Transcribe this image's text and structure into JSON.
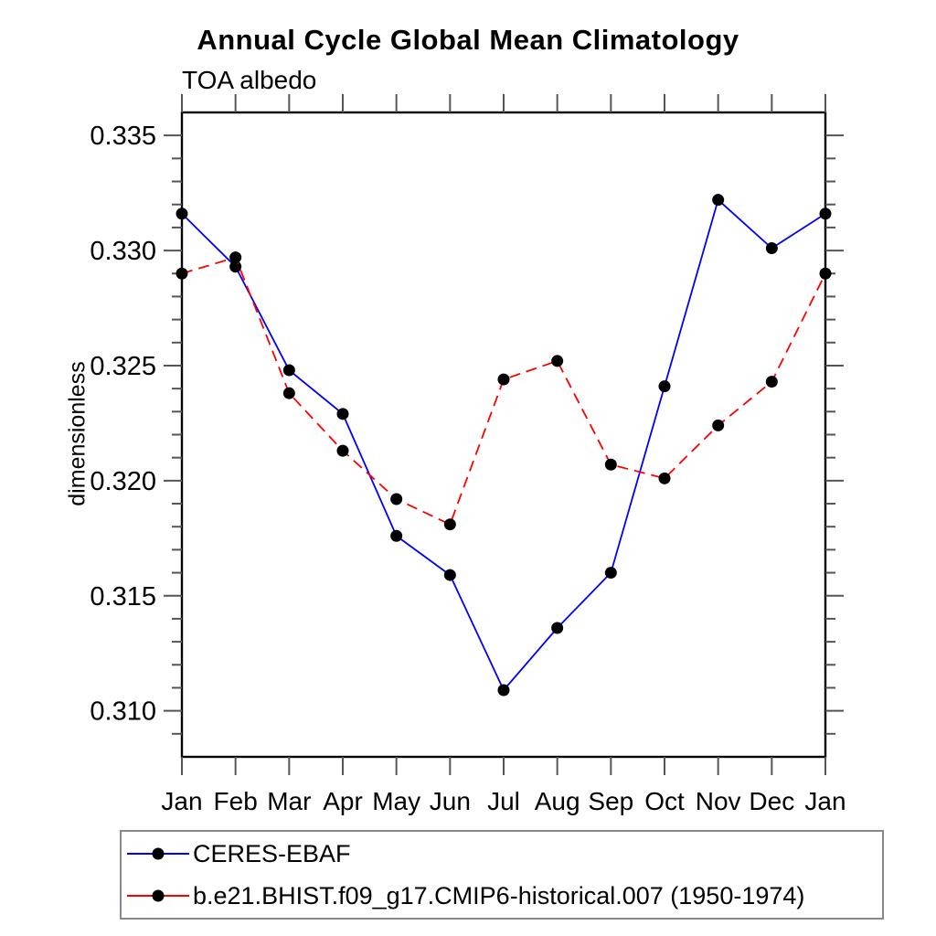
{
  "chart_data": {
    "type": "line",
    "title": "Annual Cycle Global Mean Climatology",
    "subtitle": "TOA albedo",
    "xlabel": "",
    "ylabel": "dimensionless",
    "x_tick_labels": [
      "Jan",
      "Feb",
      "Mar",
      "Apr",
      "May",
      "Jun",
      "Jul",
      "Aug",
      "Sep",
      "Oct",
      "Nov",
      "Dec",
      "Jan"
    ],
    "y_ticks": [
      0.31,
      0.315,
      0.32,
      0.325,
      0.33,
      0.335
    ],
    "y_tick_labels": [
      "0.310",
      "0.315",
      "0.320",
      "0.325",
      "0.330",
      "0.335"
    ],
    "ylim": [
      0.308,
      0.336
    ],
    "minor_tick_step": 0.001,
    "grid": false,
    "legend_position": "bottom-left",
    "series": [
      {
        "name": "CERES-EBAF",
        "color": "#0000ff",
        "line_style": "solid",
        "marker": "filled-circle",
        "marker_color": "#000000",
        "values": [
          0.3316,
          0.3293,
          0.3248,
          0.3229,
          0.3176,
          0.3159,
          0.3109,
          0.3136,
          0.316,
          0.3241,
          0.3322,
          0.3301,
          0.3316
        ]
      },
      {
        "name": "b.e21.BHIST.f09_g17.CMIP6-historical.007 (1950-1974)",
        "color": "#ff0000",
        "line_style": "dashed",
        "marker": "filled-circle",
        "marker_color": "#000000",
        "values": [
          0.329,
          0.3297,
          0.3238,
          0.3213,
          0.3192,
          0.3181,
          0.3244,
          0.3252,
          0.3207,
          0.3201,
          0.3224,
          0.3243,
          0.329
        ]
      }
    ]
  }
}
